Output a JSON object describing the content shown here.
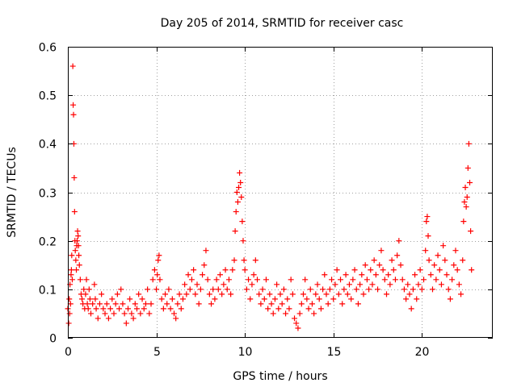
{
  "chart_data": {
    "type": "scatter",
    "title": "Day 205 of 2014, SRMTID for receiver casc",
    "xlabel": "GPS time / hours",
    "ylabel": "SRMTID / TECUs",
    "xlim": [
      0,
      24
    ],
    "ylim": [
      0,
      0.6
    ],
    "xticks": [
      0,
      5,
      10,
      15,
      20
    ],
    "xtick_labels": [
      "0",
      "5",
      "10",
      "15",
      "20"
    ],
    "yticks": [
      0,
      0.1,
      0.2,
      0.3,
      0.4,
      0.5,
      0.6
    ],
    "ytick_labels": [
      "0",
      "0.1",
      "0.2",
      "0.3",
      "0.4",
      "0.5",
      "0.6"
    ],
    "grid": true,
    "marker": "+",
    "marker_color": "#ff0000",
    "series": [
      {
        "name": "SRMTID",
        "points": [
          [
            0.0,
            0.06
          ],
          [
            0.05,
            0.03
          ],
          [
            0.08,
            0.08
          ],
          [
            0.1,
            0.05
          ],
          [
            0.12,
            0.11
          ],
          [
            0.15,
            0.07
          ],
          [
            0.18,
            0.13
          ],
          [
            0.2,
            0.14
          ],
          [
            0.22,
            0.17
          ],
          [
            0.25,
            0.12
          ],
          [
            0.28,
            0.56
          ],
          [
            0.3,
            0.48
          ],
          [
            0.32,
            0.46
          ],
          [
            0.34,
            0.4
          ],
          [
            0.36,
            0.33
          ],
          [
            0.38,
            0.26
          ],
          [
            0.4,
            0.2
          ],
          [
            0.42,
            0.18
          ],
          [
            0.45,
            0.16
          ],
          [
            0.48,
            0.14
          ],
          [
            0.5,
            0.19
          ],
          [
            0.52,
            0.2
          ],
          [
            0.55,
            0.22
          ],
          [
            0.58,
            0.21
          ],
          [
            0.6,
            0.19
          ],
          [
            0.62,
            0.17
          ],
          [
            0.65,
            0.15
          ],
          [
            0.7,
            0.12
          ],
          [
            0.75,
            0.09
          ],
          [
            0.8,
            0.08
          ],
          [
            0.85,
            0.07
          ],
          [
            0.9,
            0.1
          ],
          [
            0.95,
            0.06
          ],
          [
            1.0,
            0.09
          ],
          [
            1.05,
            0.12
          ],
          [
            1.1,
            0.07
          ],
          [
            1.15,
            0.06
          ],
          [
            1.2,
            0.1
          ],
          [
            1.25,
            0.08
          ],
          [
            1.3,
            0.05
          ],
          [
            1.4,
            0.07
          ],
          [
            1.5,
            0.11
          ],
          [
            1.55,
            0.08
          ],
          [
            1.6,
            0.06
          ],
          [
            1.7,
            0.04
          ],
          [
            1.8,
            0.07
          ],
          [
            1.9,
            0.09
          ],
          [
            2.0,
            0.06
          ],
          [
            2.1,
            0.05
          ],
          [
            2.2,
            0.07
          ],
          [
            2.3,
            0.04
          ],
          [
            2.4,
            0.06
          ],
          [
            2.5,
            0.08
          ],
          [
            2.6,
            0.05
          ],
          [
            2.7,
            0.07
          ],
          [
            2.8,
            0.09
          ],
          [
            2.9,
            0.06
          ],
          [
            3.0,
            0.1
          ],
          [
            3.1,
            0.07
          ],
          [
            3.2,
            0.05
          ],
          [
            3.3,
            0.03
          ],
          [
            3.4,
            0.06
          ],
          [
            3.5,
            0.08
          ],
          [
            3.6,
            0.05
          ],
          [
            3.7,
            0.04
          ],
          [
            3.8,
            0.07
          ],
          [
            3.9,
            0.06
          ],
          [
            4.0,
            0.09
          ],
          [
            4.1,
            0.05
          ],
          [
            4.2,
            0.08
          ],
          [
            4.3,
            0.06
          ],
          [
            4.4,
            0.07
          ],
          [
            4.5,
            0.1
          ],
          [
            4.6,
            0.05
          ],
          [
            4.7,
            0.07
          ],
          [
            4.8,
            0.12
          ],
          [
            4.9,
            0.14
          ],
          [
            5.0,
            0.1
          ],
          [
            5.05,
            0.13
          ],
          [
            5.1,
            0.16
          ],
          [
            5.15,
            0.17
          ],
          [
            5.2,
            0.12
          ],
          [
            5.3,
            0.08
          ],
          [
            5.4,
            0.06
          ],
          [
            5.5,
            0.09
          ],
          [
            5.6,
            0.07
          ],
          [
            5.7,
            0.1
          ],
          [
            5.8,
            0.06
          ],
          [
            5.9,
            0.08
          ],
          [
            6.0,
            0.05
          ],
          [
            6.1,
            0.04
          ],
          [
            6.2,
            0.07
          ],
          [
            6.3,
            0.09
          ],
          [
            6.4,
            0.06
          ],
          [
            6.5,
            0.08
          ],
          [
            6.6,
            0.11
          ],
          [
            6.7,
            0.09
          ],
          [
            6.8,
            0.13
          ],
          [
            6.9,
            0.1
          ],
          [
            7.0,
            0.12
          ],
          [
            7.1,
            0.14
          ],
          [
            7.2,
            0.09
          ],
          [
            7.3,
            0.11
          ],
          [
            7.4,
            0.07
          ],
          [
            7.5,
            0.1
          ],
          [
            7.6,
            0.13
          ],
          [
            7.7,
            0.15
          ],
          [
            7.8,
            0.18
          ],
          [
            7.9,
            0.12
          ],
          [
            8.0,
            0.09
          ],
          [
            8.1,
            0.07
          ],
          [
            8.2,
            0.1
          ],
          [
            8.3,
            0.08
          ],
          [
            8.4,
            0.12
          ],
          [
            8.5,
            0.1
          ],
          [
            8.6,
            0.13
          ],
          [
            8.7,
            0.09
          ],
          [
            8.8,
            0.11
          ],
          [
            8.9,
            0.14
          ],
          [
            9.0,
            0.1
          ],
          [
            9.1,
            0.12
          ],
          [
            9.2,
            0.09
          ],
          [
            9.3,
            0.14
          ],
          [
            9.4,
            0.16
          ],
          [
            9.45,
            0.22
          ],
          [
            9.5,
            0.26
          ],
          [
            9.55,
            0.3
          ],
          [
            9.6,
            0.28
          ],
          [
            9.65,
            0.31
          ],
          [
            9.7,
            0.34
          ],
          [
            9.75,
            0.32
          ],
          [
            9.8,
            0.29
          ],
          [
            9.85,
            0.24
          ],
          [
            9.9,
            0.2
          ],
          [
            9.95,
            0.16
          ],
          [
            10.0,
            0.14
          ],
          [
            10.1,
            0.1
          ],
          [
            10.2,
            0.12
          ],
          [
            10.3,
            0.08
          ],
          [
            10.4,
            0.11
          ],
          [
            10.5,
            0.13
          ],
          [
            10.6,
            0.16
          ],
          [
            10.7,
            0.12
          ],
          [
            10.8,
            0.09
          ],
          [
            10.9,
            0.07
          ],
          [
            11.0,
            0.1
          ],
          [
            11.1,
            0.08
          ],
          [
            11.2,
            0.12
          ],
          [
            11.3,
            0.06
          ],
          [
            11.4,
            0.09
          ],
          [
            11.5,
            0.07
          ],
          [
            11.6,
            0.05
          ],
          [
            11.7,
            0.08
          ],
          [
            11.8,
            0.11
          ],
          [
            11.9,
            0.06
          ],
          [
            12.0,
            0.09
          ],
          [
            12.1,
            0.07
          ],
          [
            12.2,
            0.1
          ],
          [
            12.3,
            0.05
          ],
          [
            12.4,
            0.08
          ],
          [
            12.5,
            0.06
          ],
          [
            12.6,
            0.12
          ],
          [
            12.7,
            0.09
          ],
          [
            12.8,
            0.04
          ],
          [
            12.9,
            0.03
          ],
          [
            13.0,
            0.02
          ],
          [
            13.1,
            0.05
          ],
          [
            13.2,
            0.07
          ],
          [
            13.3,
            0.09
          ],
          [
            13.4,
            0.12
          ],
          [
            13.5,
            0.08
          ],
          [
            13.6,
            0.06
          ],
          [
            13.7,
            0.1
          ],
          [
            13.8,
            0.07
          ],
          [
            13.9,
            0.05
          ],
          [
            14.0,
            0.09
          ],
          [
            14.1,
            0.11
          ],
          [
            14.2,
            0.08
          ],
          [
            14.3,
            0.06
          ],
          [
            14.4,
            0.1
          ],
          [
            14.5,
            0.13
          ],
          [
            14.6,
            0.09
          ],
          [
            14.7,
            0.07
          ],
          [
            14.8,
            0.1
          ],
          [
            14.9,
            0.12
          ],
          [
            15.0,
            0.08
          ],
          [
            15.1,
            0.11
          ],
          [
            15.2,
            0.14
          ],
          [
            15.3,
            0.09
          ],
          [
            15.4,
            0.12
          ],
          [
            15.5,
            0.07
          ],
          [
            15.6,
            0.1
          ],
          [
            15.7,
            0.13
          ],
          [
            15.8,
            0.09
          ],
          [
            15.9,
            0.11
          ],
          [
            16.0,
            0.08
          ],
          [
            16.1,
            0.12
          ],
          [
            16.2,
            0.14
          ],
          [
            16.3,
            0.1
          ],
          [
            16.4,
            0.07
          ],
          [
            16.5,
            0.11
          ],
          [
            16.6,
            0.13
          ],
          [
            16.7,
            0.09
          ],
          [
            16.8,
            0.15
          ],
          [
            16.9,
            0.12
          ],
          [
            17.0,
            0.1
          ],
          [
            17.1,
            0.14
          ],
          [
            17.2,
            0.11
          ],
          [
            17.3,
            0.16
          ],
          [
            17.4,
            0.13
          ],
          [
            17.5,
            0.1
          ],
          [
            17.6,
            0.15
          ],
          [
            17.7,
            0.18
          ],
          [
            17.8,
            0.14
          ],
          [
            17.9,
            0.12
          ],
          [
            18.0,
            0.09
          ],
          [
            18.1,
            0.13
          ],
          [
            18.2,
            0.11
          ],
          [
            18.3,
            0.16
          ],
          [
            18.4,
            0.14
          ],
          [
            18.5,
            0.12
          ],
          [
            18.6,
            0.17
          ],
          [
            18.7,
            0.2
          ],
          [
            18.8,
            0.15
          ],
          [
            18.9,
            0.12
          ],
          [
            19.0,
            0.1
          ],
          [
            19.1,
            0.08
          ],
          [
            19.2,
            0.11
          ],
          [
            19.3,
            0.09
          ],
          [
            19.4,
            0.06
          ],
          [
            19.5,
            0.1
          ],
          [
            19.6,
            0.13
          ],
          [
            19.7,
            0.08
          ],
          [
            19.8,
            0.11
          ],
          [
            19.9,
            0.14
          ],
          [
            20.0,
            0.1
          ],
          [
            20.1,
            0.12
          ],
          [
            20.2,
            0.18
          ],
          [
            20.25,
            0.24
          ],
          [
            20.3,
            0.25
          ],
          [
            20.35,
            0.21
          ],
          [
            20.4,
            0.16
          ],
          [
            20.5,
            0.13
          ],
          [
            20.6,
            0.1
          ],
          [
            20.7,
            0.15
          ],
          [
            20.8,
            0.12
          ],
          [
            20.9,
            0.17
          ],
          [
            21.0,
            0.14
          ],
          [
            21.1,
            0.11
          ],
          [
            21.2,
            0.19
          ],
          [
            21.3,
            0.16
          ],
          [
            21.4,
            0.13
          ],
          [
            21.5,
            0.1
          ],
          [
            21.6,
            0.08
          ],
          [
            21.7,
            0.12
          ],
          [
            21.8,
            0.15
          ],
          [
            21.9,
            0.18
          ],
          [
            22.0,
            0.14
          ],
          [
            22.1,
            0.11
          ],
          [
            22.2,
            0.09
          ],
          [
            22.3,
            0.16
          ],
          [
            22.35,
            0.24
          ],
          [
            22.4,
            0.28
          ],
          [
            22.45,
            0.31
          ],
          [
            22.5,
            0.27
          ],
          [
            22.55,
            0.29
          ],
          [
            22.6,
            0.35
          ],
          [
            22.65,
            0.4
          ],
          [
            22.7,
            0.32
          ],
          [
            22.75,
            0.22
          ],
          [
            22.8,
            0.14
          ]
        ]
      }
    ]
  }
}
